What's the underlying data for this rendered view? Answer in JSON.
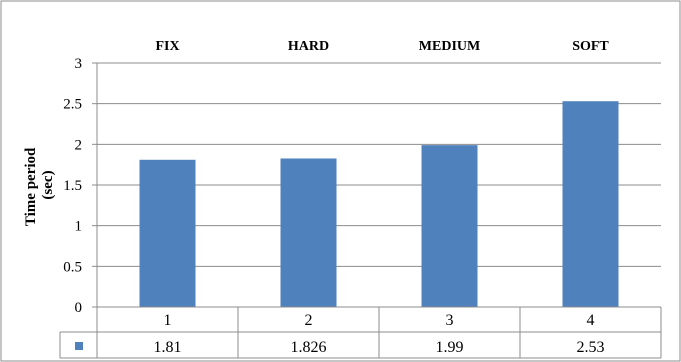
{
  "chart_data": {
    "type": "bar",
    "categories": [
      "FIX",
      "HARD",
      "MEDIUM",
      "SOFT"
    ],
    "x_values": [
      "1",
      "2",
      "3",
      "4"
    ],
    "values": [
      1.81,
      1.826,
      1.99,
      2.53
    ],
    "value_labels": [
      "1.81",
      "1.826",
      "1.99",
      "2.53"
    ],
    "ylabel_line1": "Time period",
    "ylabel_line2": "(sec)",
    "ylim": [
      0,
      3
    ],
    "yticks": [
      "0",
      "0.5",
      "1",
      "1.5",
      "2",
      "2.5",
      "3"
    ],
    "grid": true,
    "legend": "data table",
    "bar_color": "#4F81BD"
  }
}
